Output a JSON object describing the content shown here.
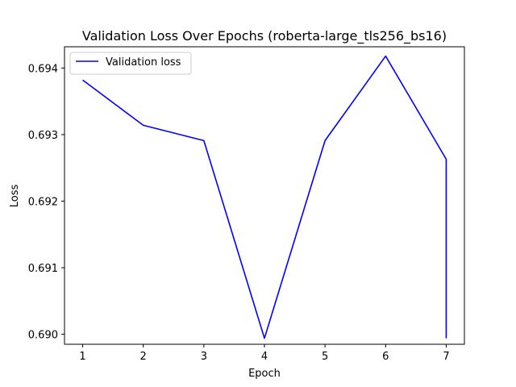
{
  "chart_data": {
    "type": "line",
    "title": "Validation Loss Over Epochs (roberta-large_tls256_bs16)",
    "xlabel": "Epoch",
    "ylabel": "Loss",
    "xlim": [
      0.7,
      7.3
    ],
    "ylim": [
      0.68985,
      0.69432
    ],
    "x_ticks": [
      "1",
      "2",
      "3",
      "4",
      "5",
      "6",
      "7"
    ],
    "y_ticks": [
      "0.690",
      "0.691",
      "0.692",
      "0.693",
      "0.694"
    ],
    "y_tick_values": [
      0.69,
      0.691,
      0.692,
      0.693,
      0.694
    ],
    "x_tick_values": [
      1,
      2,
      3,
      4,
      5,
      6,
      7
    ],
    "legend_position": "top-left",
    "grid": false,
    "series": [
      {
        "name": "Validation loss",
        "color": "#0000ff",
        "x": [
          1,
          2,
          3,
          4,
          5,
          6,
          7,
          7
        ],
        "y": [
          0.69382,
          0.69314,
          0.69291,
          0.68994,
          0.69291,
          0.69418,
          0.69263,
          0.68994
        ]
      }
    ]
  }
}
